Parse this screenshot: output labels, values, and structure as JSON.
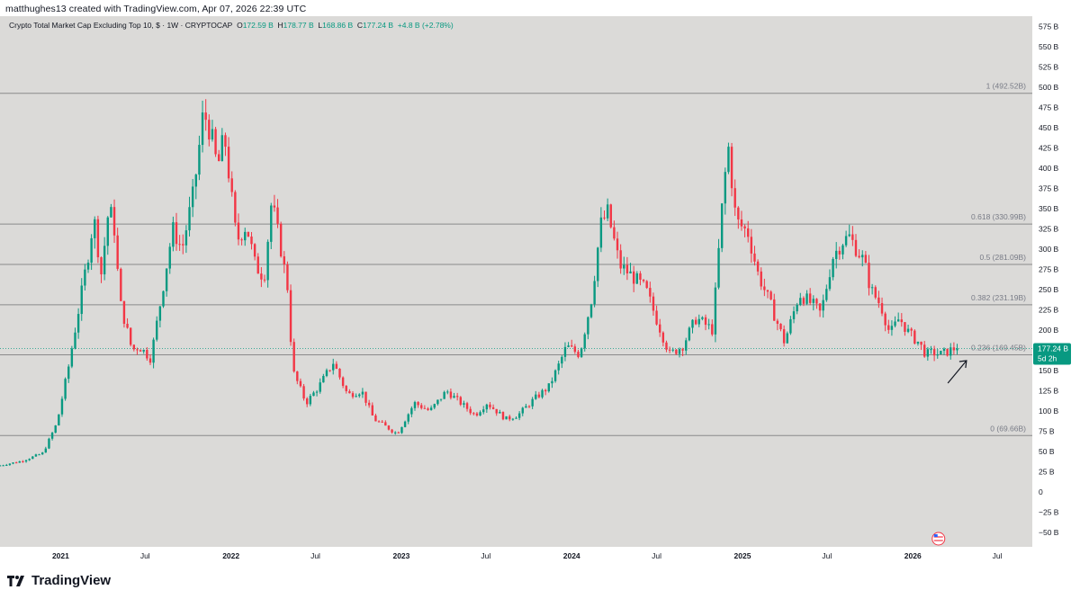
{
  "header": {
    "text": "matthughes13 created with TradingView.com, Apr 07, 2026 22:39 UTC"
  },
  "legend": {
    "title": "Crypto Total Market Cap Excluding Top 10, $ · 1W · CRYPTOCAP",
    "open_label": "O",
    "open": "172.59 B",
    "high_label": "H",
    "high": "178.77 B",
    "low_label": "L",
    "low": "168.86 B",
    "close_label": "C",
    "close": "177.24 B",
    "change": "+4.8 B (+2.78%)"
  },
  "price_tag": {
    "value": "177.24 B",
    "countdown": "5d 2h"
  },
  "footer": {
    "brand": "TradingView"
  },
  "colors": {
    "up": "#089981",
    "down": "#f23645",
    "background": "#dbdad8"
  },
  "chart_data": {
    "type": "candlestick",
    "title": "Crypto Total Market Cap Excluding Top 10, $ · 1W · CRYPTOCAP",
    "y_unit": "B",
    "ylim": [
      -60,
      590
    ],
    "yticks": [
      "575 B",
      "550 B",
      "525 B",
      "500 B",
      "475 B",
      "450 B",
      "425 B",
      "400 B",
      "375 B",
      "350 B",
      "325 B",
      "300 B",
      "275 B",
      "250 B",
      "225 B",
      "200 B",
      "175 B",
      "150 B",
      "125 B",
      "100 B",
      "75 B",
      "50 B",
      "25 B",
      "0",
      "−25 B",
      "−50 B"
    ],
    "ytick_values": [
      575,
      550,
      525,
      500,
      475,
      450,
      425,
      400,
      375,
      350,
      325,
      300,
      275,
      250,
      225,
      200,
      175,
      150,
      125,
      100,
      75,
      50,
      25,
      0,
      -25,
      -50
    ],
    "xticks": [
      {
        "label": "2021",
        "date": "2021-01-01",
        "bold": true
      },
      {
        "label": "Jul",
        "date": "2021-07-01",
        "bold": false
      },
      {
        "label": "2022",
        "date": "2022-01-01",
        "bold": true
      },
      {
        "label": "Jul",
        "date": "2022-07-01",
        "bold": false
      },
      {
        "label": "2023",
        "date": "2023-01-01",
        "bold": true
      },
      {
        "label": "Jul",
        "date": "2023-07-01",
        "bold": false
      },
      {
        "label": "2024",
        "date": "2024-01-01",
        "bold": true
      },
      {
        "label": "Jul",
        "date": "2024-07-01",
        "bold": false
      },
      {
        "label": "2025",
        "date": "2025-01-01",
        "bold": true
      },
      {
        "label": "Jul",
        "date": "2025-07-01",
        "bold": false
      },
      {
        "label": "2026",
        "date": "2026-01-01",
        "bold": true
      },
      {
        "label": "Jul",
        "date": "2026-07-01",
        "bold": false
      }
    ],
    "xlim": [
      "2020-08-24",
      "2026-09-14"
    ],
    "fib_levels": [
      {
        "label": "1 (492.52B)",
        "value": 492.52
      },
      {
        "label": "0.618 (330.99B)",
        "value": 330.99
      },
      {
        "label": "0.5 (281.09B)",
        "value": 281.09
      },
      {
        "label": "0.382 (231.19B)",
        "value": 231.19
      },
      {
        "label": "0.236 (169.45B)",
        "value": 169.45
      },
      {
        "label": "0 (69.66B)",
        "value": 69.66
      }
    ],
    "last_price": 177.24,
    "path_points": [
      [
        "2020-08-24",
        32
      ],
      [
        "2020-10-15",
        38
      ],
      [
        "2020-12-01",
        48
      ],
      [
        "2020-12-31",
        85
      ],
      [
        "2021-01-25",
        155
      ],
      [
        "2021-02-20",
        240
      ],
      [
        "2021-03-10",
        300
      ],
      [
        "2021-03-20",
        340
      ],
      [
        "2021-04-05",
        270
      ],
      [
        "2021-04-20",
        345
      ],
      [
        "2021-05-01",
        340
      ],
      [
        "2021-05-15",
        235
      ],
      [
        "2021-06-10",
        175
      ],
      [
        "2021-06-25",
        180
      ],
      [
        "2021-07-20",
        165
      ],
      [
        "2021-08-10",
        235
      ],
      [
        "2021-09-05",
        325
      ],
      [
        "2021-09-25",
        300
      ],
      [
        "2021-10-20",
        370
      ],
      [
        "2021-11-10",
        470
      ],
      [
        "2021-11-25",
        445
      ],
      [
        "2021-12-10",
        400
      ],
      [
        "2021-12-25",
        440
      ],
      [
        "2022-01-20",
        310
      ],
      [
        "2022-02-10",
        330
      ],
      [
        "2022-03-01",
        280
      ],
      [
        "2022-03-20",
        265
      ],
      [
        "2022-04-05",
        360
      ],
      [
        "2022-04-25",
        300
      ],
      [
        "2022-05-10",
        250
      ],
      [
        "2022-05-20",
        150
      ],
      [
        "2022-06-18",
        110
      ],
      [
        "2022-07-15",
        130
      ],
      [
        "2022-08-15",
        160
      ],
      [
        "2022-09-15",
        120
      ],
      [
        "2022-10-15",
        125
      ],
      [
        "2022-11-10",
        90
      ],
      [
        "2022-12-30",
        72
      ],
      [
        "2023-02-05",
        110
      ],
      [
        "2023-03-10",
        100
      ],
      [
        "2023-04-15",
        125
      ],
      [
        "2023-05-15",
        110
      ],
      [
        "2023-06-15",
        95
      ],
      [
        "2023-07-10",
        110
      ],
      [
        "2023-08-20",
        90
      ],
      [
        "2023-09-15",
        95
      ],
      [
        "2023-10-20",
        115
      ],
      [
        "2023-11-20",
        130
      ],
      [
        "2023-12-10",
        155
      ],
      [
        "2023-12-28",
        180
      ],
      [
        "2024-01-25",
        170
      ],
      [
        "2024-02-20",
        240
      ],
      [
        "2024-03-10",
        330
      ],
      [
        "2024-03-25",
        345
      ],
      [
        "2024-04-20",
        280
      ],
      [
        "2024-05-20",
        265
      ],
      [
        "2024-06-15",
        250
      ],
      [
        "2024-07-10",
        210
      ],
      [
        "2024-08-05",
        170
      ],
      [
        "2024-09-01",
        180
      ],
      [
        "2024-10-01",
        215
      ],
      [
        "2024-11-05",
        200
      ],
      [
        "2024-11-25",
        350
      ],
      [
        "2024-12-08",
        430
      ],
      [
        "2024-12-25",
        335
      ],
      [
        "2025-01-20",
        320
      ],
      [
        "2025-02-10",
        270
      ],
      [
        "2025-03-10",
        230
      ],
      [
        "2025-04-08",
        185
      ],
      [
        "2025-05-10",
        245
      ],
      [
        "2025-06-10",
        230
      ],
      [
        "2025-06-25",
        220
      ],
      [
        "2025-07-20",
        290
      ],
      [
        "2025-08-10",
        310
      ],
      [
        "2025-08-25",
        315
      ],
      [
        "2025-09-10",
        300
      ],
      [
        "2025-09-25",
        285
      ],
      [
        "2025-10-10",
        250
      ],
      [
        "2025-11-01",
        230
      ],
      [
        "2025-11-20",
        195
      ],
      [
        "2025-12-10",
        215
      ],
      [
        "2026-01-01",
        195
      ],
      [
        "2026-01-20",
        185
      ],
      [
        "2026-02-05",
        170
      ],
      [
        "2026-02-20",
        172
      ],
      [
        "2026-03-10",
        170
      ],
      [
        "2026-04-07",
        177.24
      ]
    ],
    "annotation": "arrow pointing at the 0.236 (169.45B) level"
  }
}
